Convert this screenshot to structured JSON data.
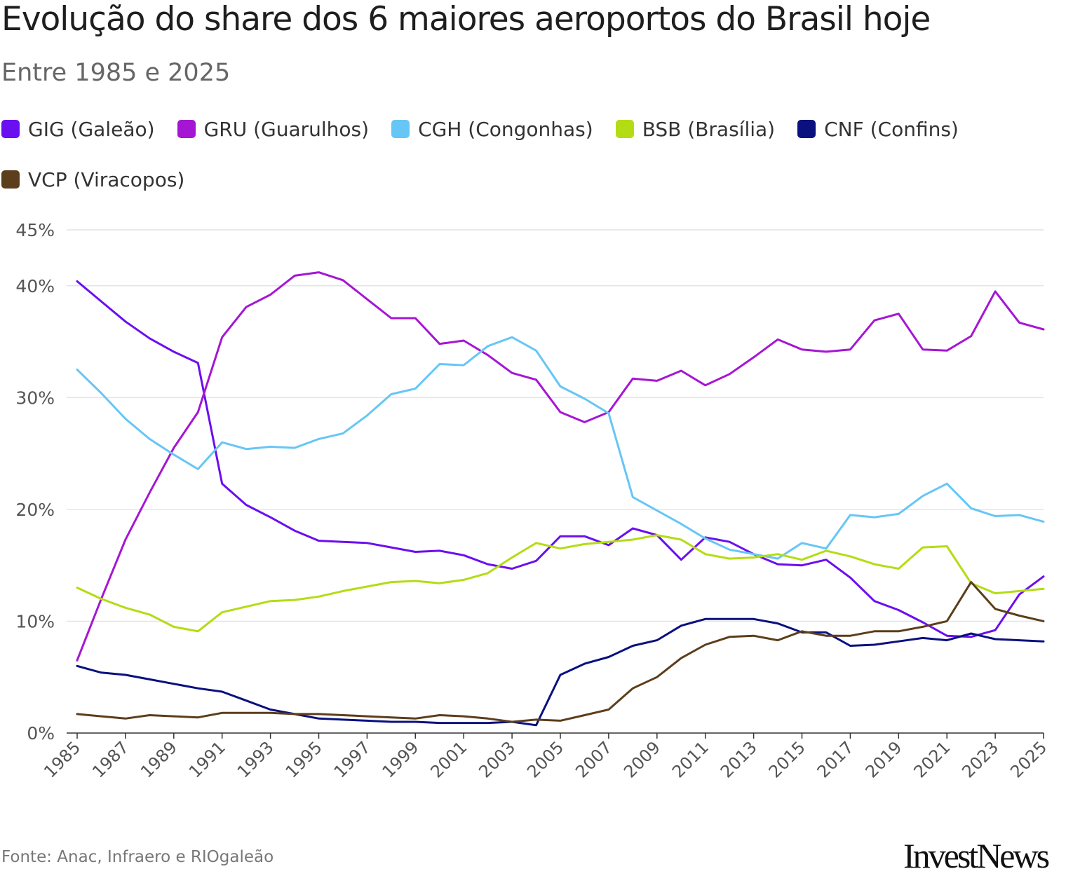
{
  "header": {
    "title": "Evolução do share dos 6 maiores aeroportos do Brasil hoje",
    "subtitle": "Entre 1985 e 2025"
  },
  "footer": {
    "source": "Fonte: Anac, Infraero e RIOgaleão",
    "logo": "InvestNews"
  },
  "chart_data": {
    "type": "line",
    "title": "Evolução do share dos 6 maiores aeroportos do Brasil hoje",
    "subtitle": "Entre 1985 e 2025",
    "xlabel": "",
    "ylabel": "",
    "ylim": [
      0,
      45
    ],
    "y_ticks": [
      0,
      10,
      20,
      30,
      40,
      45
    ],
    "y_tick_labels": [
      "0%",
      "10%",
      "20%",
      "30%",
      "40%",
      "45%"
    ],
    "x": [
      1985,
      1986,
      1987,
      1988,
      1989,
      1990,
      1991,
      1992,
      1993,
      1994,
      1995,
      1996,
      1997,
      1998,
      1999,
      2000,
      2001,
      2002,
      2003,
      2004,
      2005,
      2006,
      2007,
      2008,
      2009,
      2010,
      2011,
      2012,
      2013,
      2014,
      2015,
      2016,
      2017,
      2018,
      2019,
      2020,
      2021,
      2022,
      2023,
      2024,
      2025
    ],
    "x_tick_labels": [
      "1985",
      "1987",
      "1989",
      "1991",
      "1993",
      "1995",
      "1997",
      "1999",
      "2001",
      "2003",
      "2005",
      "2007",
      "2009",
      "2011",
      "2013",
      "2015",
      "2017",
      "2019",
      "2021",
      "2023",
      "2025"
    ],
    "grid": true,
    "legend_position": "top-left",
    "series": [
      {
        "name": "GIG (Galeão)",
        "color": "#6a0ff0",
        "values": [
          40.4,
          38.6,
          36.8,
          35.3,
          34.1,
          33.1,
          22.3,
          20.4,
          19.3,
          18.1,
          17.2,
          17.1,
          17.0,
          16.6,
          16.2,
          16.3,
          15.9,
          15.1,
          14.7,
          15.4,
          17.6,
          17.6,
          16.8,
          18.3,
          17.7,
          15.5,
          17.5,
          17.1,
          16.0,
          15.1,
          15.0,
          15.5,
          13.9,
          11.8,
          11.0,
          9.9,
          8.7,
          8.6,
          9.2,
          12.4,
          14.0
        ]
      },
      {
        "name": "GRU (Guarulhos)",
        "color": "#a516d4",
        "values": [
          6.5,
          12.0,
          17.3,
          21.5,
          25.5,
          28.7,
          35.4,
          38.1,
          39.2,
          40.9,
          41.2,
          40.5,
          38.8,
          37.1,
          37.1,
          34.8,
          35.1,
          33.8,
          32.2,
          31.6,
          28.7,
          27.8,
          28.7,
          31.7,
          31.5,
          32.4,
          31.1,
          32.1,
          33.6,
          35.2,
          34.3,
          34.1,
          34.3,
          36.9,
          37.5,
          34.3,
          34.2,
          35.5,
          39.5,
          36.7,
          36.1
        ]
      },
      {
        "name": "CGH (Congonhas)",
        "color": "#66c6f5",
        "values": [
          32.5,
          30.4,
          28.1,
          26.3,
          24.9,
          23.6,
          26.0,
          25.4,
          25.6,
          25.5,
          26.3,
          26.8,
          28.4,
          30.3,
          30.8,
          33.0,
          32.9,
          34.6,
          35.4,
          34.2,
          31.0,
          29.9,
          28.6,
          21.1,
          19.9,
          18.7,
          17.4,
          16.4,
          16.0,
          15.6,
          17.0,
          16.5,
          19.5,
          19.3,
          19.6,
          21.2,
          22.3,
          20.1,
          19.4,
          19.5,
          18.9
        ]
      },
      {
        "name": "BSB (Brasília)",
        "color": "#b4dc14",
        "values": [
          13.0,
          12.0,
          11.2,
          10.6,
          9.5,
          9.1,
          10.8,
          11.3,
          11.8,
          11.9,
          12.2,
          12.7,
          13.1,
          13.5,
          13.6,
          13.4,
          13.7,
          14.3,
          15.7,
          17.0,
          16.5,
          16.9,
          17.1,
          17.3,
          17.7,
          17.3,
          16.0,
          15.6,
          15.7,
          16.0,
          15.5,
          16.3,
          15.8,
          15.1,
          14.7,
          16.6,
          16.7,
          13.4,
          12.5,
          12.7,
          12.9
        ]
      },
      {
        "name": "CNF (Confins)",
        "color": "#0a107e",
        "values": [
          6.0,
          5.4,
          5.2,
          4.8,
          4.4,
          4.0,
          3.7,
          2.9,
          2.1,
          1.7,
          1.3,
          1.2,
          1.1,
          1.0,
          1.0,
          0.9,
          0.9,
          0.9,
          1.0,
          0.7,
          5.2,
          6.2,
          6.8,
          7.8,
          8.3,
          9.6,
          10.2,
          10.2,
          10.2,
          9.8,
          9.0,
          9.0,
          7.8,
          7.9,
          8.2,
          8.5,
          8.3,
          8.9,
          8.4,
          8.3,
          8.2
        ]
      },
      {
        "name": "VCP (Viracopos)",
        "color": "#5c3e1c",
        "values": [
          1.7,
          1.5,
          1.3,
          1.6,
          1.5,
          1.4,
          1.8,
          1.8,
          1.8,
          1.7,
          1.7,
          1.6,
          1.5,
          1.4,
          1.3,
          1.6,
          1.5,
          1.3,
          1.0,
          1.2,
          1.1,
          1.6,
          2.1,
          4.0,
          5.0,
          6.7,
          7.9,
          8.6,
          8.7,
          8.3,
          9.1,
          8.7,
          8.7,
          9.1,
          9.1,
          9.5,
          10.0,
          13.5,
          11.1,
          10.5,
          10.0
        ]
      }
    ]
  }
}
